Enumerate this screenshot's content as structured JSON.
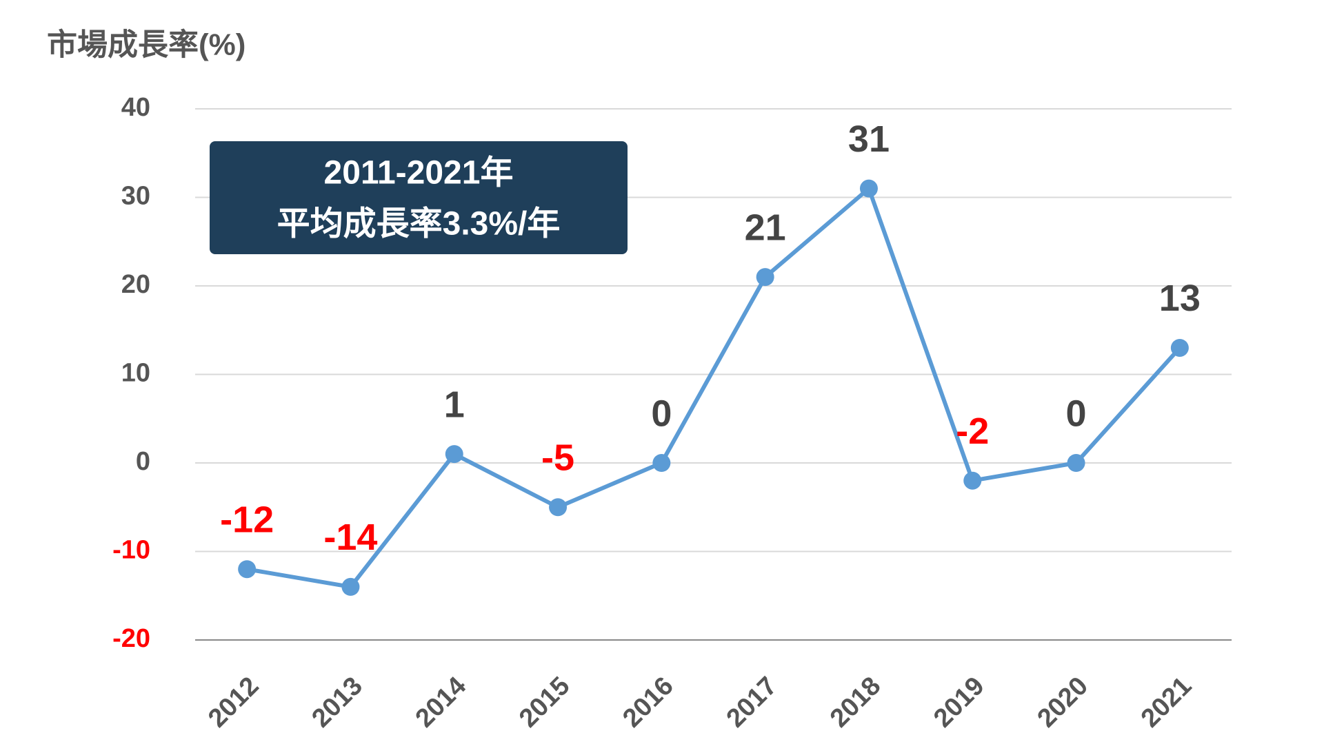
{
  "chart_data": {
    "type": "line",
    "title": "市場成長率(%)",
    "annotation": [
      "2011-2021年",
      "平均成長率3.3%/年"
    ],
    "categories": [
      "2012",
      "2013",
      "2014",
      "2015",
      "2016",
      "2017",
      "2018",
      "2019",
      "2020",
      "2021"
    ],
    "values": [
      -12,
      -14,
      1,
      -5,
      0,
      21,
      31,
      -2,
      0,
      13
    ],
    "color": "#5b9bd5",
    "negative_color": "#ff0000",
    "ylim": [
      -20,
      40
    ],
    "yticks": [
      -20,
      -10,
      0,
      10,
      20,
      30,
      40
    ],
    "grid": true
  }
}
